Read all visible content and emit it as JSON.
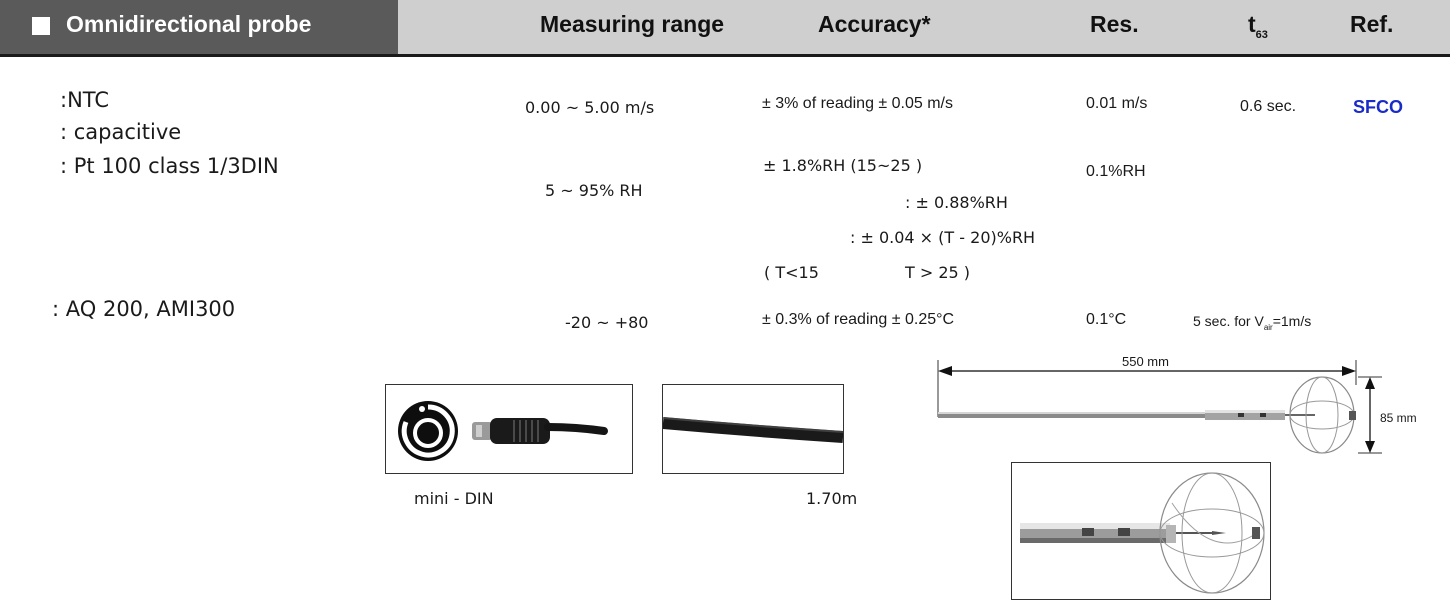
{
  "header": {
    "title": "Omnidirectional probe",
    "col_range": "Measuring range",
    "col_accuracy": "Accuracy*",
    "col_res": "Res.",
    "col_t63_main": "t",
    "col_t63_sub": "63",
    "col_ref": "Ref."
  },
  "sensors": [
    ":NTC",
    ": capacitive",
    ": Pt 100 class 1/3DIN",
    ": AQ 200, AMI300"
  ],
  "rows": {
    "velocity": {
      "range": "0.00 ~ 5.00 m/s",
      "accuracy": "± 3% of reading ± 0.05 m/s",
      "res": "0.01 m/s",
      "t63": "0.6 sec.",
      "ref": "SFCO"
    },
    "humidity": {
      "range": "5 ~ 95% RH",
      "accuracy_1": "± 1.8%RH (15~25   )",
      "accuracy_2": ": ± 0.88%RH",
      "accuracy_3": ": ± 0.04 × (T - 20)%RH",
      "accuracy_4_a": "( T<15",
      "accuracy_4_b": "T > 25   )",
      "res": "0.1%RH"
    },
    "temperature": {
      "range": "-20 ~ +80",
      "accuracy": "± 0.3% of reading  ± 0.25°C",
      "res": "0.1°C",
      "t63_main": "5 sec. for V",
      "t63_sub": "air",
      "t63_tail": "=1m/s"
    }
  },
  "figures": {
    "connector_caption": "mini - DIN",
    "cable_caption": "1.70m",
    "length_dim": "550 mm",
    "diameter_dim": "85 mm"
  }
}
